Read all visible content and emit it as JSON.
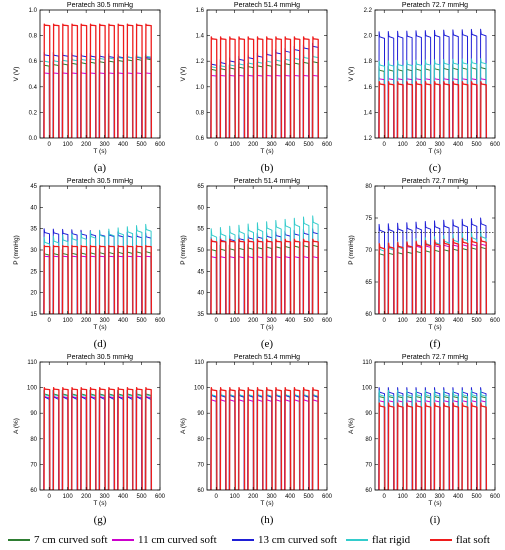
{
  "chart_data": [
    {
      "id": "a",
      "type": "line",
      "title": "Peratech 30.5 mmHg",
      "panel_label": "(a)",
      "xlabel": "T (s)",
      "ylabel": "V (V)",
      "xlim": [
        -50,
        600
      ],
      "xticks": [
        "0",
        "100",
        "200",
        "300",
        "400",
        "500",
        "600"
      ],
      "ylim": [
        0.0,
        1.0
      ],
      "yticks": [
        "0.0",
        "0.2",
        "0.4",
        "0.6",
        "0.8",
        "1.0"
      ],
      "series": [
        {
          "name": "7 cm curved soft",
          "color": "#2e7d32",
          "base": 0.0,
          "start": 0.52,
          "peak": 0.59,
          "trend": 0.05
        },
        {
          "name": "11 cm curved soft",
          "color": "#cc00cc",
          "base": 0.0,
          "start": 0.48,
          "peak": 0.52,
          "trend": 0.0
        },
        {
          "name": "13 cm curved soft",
          "color": "#1f1fd6",
          "base": 0.0,
          "start": 0.6,
          "peak": 0.67,
          "trend": -0.02
        },
        {
          "name": "flat rigid",
          "color": "#33cccc",
          "base": 0.0,
          "start": 0.55,
          "peak": 0.62,
          "trend": 0.04
        },
        {
          "name": "flat soft",
          "color": "#ee1c1c",
          "base": 0.0,
          "start": 0.86,
          "peak": 0.89,
          "trend": 0.0
        }
      ]
    },
    {
      "id": "b",
      "type": "line",
      "title": "Peratech 51.4 mmHg",
      "panel_label": "(b)",
      "xlabel": "T (s)",
      "ylabel": "V (V)",
      "xlim": [
        -50,
        600
      ],
      "xticks": [
        "0",
        "100",
        "200",
        "300",
        "400",
        "500",
        "600"
      ],
      "ylim": [
        0.6,
        1.6
      ],
      "yticks": [
        "0.6",
        "0.8",
        "1.0",
        "1.2",
        "1.4",
        "1.6"
      ],
      "series": [
        {
          "name": "7 cm curved soft",
          "color": "#2e7d32",
          "base": 0.6,
          "start": 1.08,
          "peak": 1.16,
          "trend": 0.06
        },
        {
          "name": "11 cm curved soft",
          "color": "#cc00cc",
          "base": 0.6,
          "start": 1.06,
          "peak": 1.1,
          "trend": 0.0
        },
        {
          "name": "13 cm curved soft",
          "color": "#1f1fd6",
          "base": 0.6,
          "start": 1.12,
          "peak": 1.2,
          "trend": 0.14
        },
        {
          "name": "flat rigid",
          "color": "#33cccc",
          "base": 0.6,
          "start": 1.1,
          "peak": 1.18,
          "trend": 0.08
        },
        {
          "name": "flat soft",
          "color": "#ee1c1c",
          "base": 0.6,
          "start": 1.34,
          "peak": 1.39,
          "trend": 0.0
        }
      ]
    },
    {
      "id": "c",
      "type": "line",
      "title": "Peratech 72.7 mmHg",
      "panel_label": "(c)",
      "xlabel": "T (s)",
      "ylabel": "V (V)",
      "xlim": [
        -50,
        600
      ],
      "xticks": [
        "0",
        "100",
        "200",
        "300",
        "400",
        "500",
        "600"
      ],
      "ylim": [
        1.2,
        2.2
      ],
      "yticks": [
        "1.2",
        "1.4",
        "1.6",
        "1.8",
        "2.0",
        "2.2"
      ],
      "series": [
        {
          "name": "7 cm curved soft",
          "color": "#2e7d32",
          "base": 1.2,
          "start": 1.66,
          "peak": 1.76,
          "trend": 0.02
        },
        {
          "name": "11 cm curved soft",
          "color": "#cc00cc",
          "base": 1.2,
          "start": 1.62,
          "peak": 1.68,
          "trend": 0.0
        },
        {
          "name": "13 cm curved soft",
          "color": "#1f1fd6",
          "base": 1.2,
          "start": 1.9,
          "peak": 2.03,
          "trend": 0.02
        },
        {
          "name": "flat rigid",
          "color": "#33cccc",
          "base": 1.2,
          "start": 1.7,
          "peak": 1.8,
          "trend": 0.02
        },
        {
          "name": "flat soft",
          "color": "#ee1c1c",
          "base": 1.2,
          "start": 1.58,
          "peak": 1.64,
          "trend": 0.0
        }
      ]
    },
    {
      "id": "d",
      "type": "line",
      "title": "Peratech 30.5 mmHg",
      "panel_label": "(d)",
      "xlabel": "T (s)",
      "ylabel": "P (mmHg)",
      "xlim": [
        -50,
        600
      ],
      "xticks": [
        "0",
        "100",
        "200",
        "300",
        "400",
        "500",
        "600"
      ],
      "ylim": [
        15,
        45
      ],
      "yticks": [
        "15",
        "20",
        "25",
        "30",
        "35",
        "40",
        "45"
      ],
      "series": [
        {
          "name": "7 cm curved soft",
          "color": "#2e7d32",
          "base": 15,
          "start": 27,
          "peak": 30,
          "trend": 0.5
        },
        {
          "name": "11 cm curved soft",
          "color": "#cc00cc",
          "base": 15,
          "start": 27.5,
          "peak": 29,
          "trend": 0.0
        },
        {
          "name": "13 cm curved soft",
          "color": "#1f1fd6",
          "base": 15,
          "start": 32,
          "peak": 35,
          "trend": -1.0
        },
        {
          "name": "flat rigid",
          "color": "#33cccc",
          "base": 15,
          "start": 29,
          "peak": 33,
          "trend": 3.0
        },
        {
          "name": "flat soft",
          "color": "#ee1c1c",
          "base": 15,
          "start": 30.5,
          "peak": 31,
          "trend": 0.0
        }
      ]
    },
    {
      "id": "e",
      "type": "line",
      "title": "Peratech 51.4 mmHg",
      "panel_label": "(e)",
      "xlabel": "T (s)",
      "ylabel": "P (mmHg)",
      "xlim": [
        -50,
        600
      ],
      "xticks": [
        "0",
        "100",
        "200",
        "300",
        "400",
        "500",
        "600"
      ],
      "ylim": [
        35,
        65
      ],
      "yticks": [
        "35",
        "40",
        "45",
        "50",
        "55",
        "60",
        "65"
      ],
      "series": [
        {
          "name": "7 cm curved soft",
          "color": "#2e7d32",
          "base": 35,
          "start": 48,
          "peak": 51,
          "trend": 1.0
        },
        {
          "name": "11 cm curved soft",
          "color": "#cc00cc",
          "base": 35,
          "start": 47,
          "peak": 49,
          "trend": 0.0
        },
        {
          "name": "13 cm curved soft",
          "color": "#1f1fd6",
          "base": 35,
          "start": 50,
          "peak": 53,
          "trend": 2.0
        },
        {
          "name": "flat rigid",
          "color": "#33cccc",
          "base": 35,
          "start": 50,
          "peak": 55,
          "trend": 3.0
        },
        {
          "name": "flat soft",
          "color": "#ee1c1c",
          "base": 35,
          "start": 51,
          "peak": 52.5,
          "trend": 0.0
        }
      ]
    },
    {
      "id": "f",
      "type": "line",
      "title": "Peratech 72.7 mmHg",
      "panel_label": "(f)",
      "xlabel": "T (s)",
      "ylabel": "P (mmHg)",
      "xlim": [
        -50,
        600
      ],
      "xticks": [
        "0",
        "100",
        "200",
        "300",
        "400",
        "500",
        "600"
      ],
      "ylim": [
        60,
        80
      ],
      "yticks": [
        "60",
        "65",
        "70",
        "75",
        "80"
      ],
      "reference_line": 72.7,
      "series": [
        {
          "name": "7 cm curved soft",
          "color": "#2e7d32",
          "base": 60,
          "start": 68,
          "peak": 70,
          "trend": 1.0
        },
        {
          "name": "11 cm curved soft",
          "color": "#cc00cc",
          "base": 60,
          "start": 69,
          "peak": 71,
          "trend": 0.5
        },
        {
          "name": "13 cm curved soft",
          "color": "#1f1fd6",
          "base": 60,
          "start": 71,
          "peak": 74,
          "trend": 1.0
        },
        {
          "name": "flat rigid",
          "color": "#33cccc",
          "base": 60,
          "start": 68,
          "peak": 71,
          "trend": 2.0
        },
        {
          "name": "flat soft",
          "color": "#ee1c1c",
          "base": 60,
          "start": 69,
          "peak": 71,
          "trend": 1.0
        }
      ]
    },
    {
      "id": "g",
      "type": "line",
      "title": "Peratech 30.5 mmHg",
      "panel_label": "(g)",
      "xlabel": "T (s)",
      "ylabel": "A (%)",
      "xlim": [
        -50,
        600
      ],
      "xticks": [
        "0",
        "100",
        "200",
        "300",
        "400",
        "500",
        "600"
      ],
      "ylim": [
        60,
        110
      ],
      "yticks": [
        "60",
        "70",
        "80",
        "90",
        "100",
        "110"
      ],
      "series": [
        {
          "name": "7 cm curved soft",
          "color": "#2e7d32",
          "base": 60,
          "start": 94,
          "peak": 99,
          "trend": 0.0
        },
        {
          "name": "11 cm curved soft",
          "color": "#cc00cc",
          "base": 60,
          "start": 93,
          "peak": 98,
          "trend": 0.0
        },
        {
          "name": "13 cm curved soft",
          "color": "#1f1fd6",
          "base": 60,
          "start": 90,
          "peak": 99,
          "trend": 0.0
        },
        {
          "name": "flat rigid",
          "color": "#33cccc",
          "base": 60,
          "start": 93,
          "peak": 99,
          "trend": 0.0
        },
        {
          "name": "flat soft",
          "color": "#ee1c1c",
          "base": 60,
          "start": 98,
          "peak": 100,
          "trend": 0.0
        }
      ]
    },
    {
      "id": "h",
      "type": "line",
      "title": "Peratech 51.4 mmHg",
      "panel_label": "(h)",
      "xlabel": "T (s)",
      "ylabel": "A (%)",
      "xlim": [
        -50,
        600
      ],
      "xticks": [
        "0",
        "100",
        "200",
        "300",
        "400",
        "500",
        "600"
      ],
      "ylim": [
        60,
        110
      ],
      "yticks": [
        "60",
        "70",
        "80",
        "90",
        "100",
        "110"
      ],
      "series": [
        {
          "name": "7 cm curved soft",
          "color": "#2e7d32",
          "base": 60,
          "start": 93,
          "peak": 99,
          "trend": 0.0
        },
        {
          "name": "11 cm curved soft",
          "color": "#cc00cc",
          "base": 60,
          "start": 91,
          "peak": 97,
          "trend": 0.0
        },
        {
          "name": "13 cm curved soft",
          "color": "#1f1fd6",
          "base": 60,
          "start": 92,
          "peak": 99,
          "trend": 0.0
        },
        {
          "name": "flat rigid",
          "color": "#33cccc",
          "base": 60,
          "start": 93,
          "peak": 99,
          "trend": 0.0
        },
        {
          "name": "flat soft",
          "color": "#ee1c1c",
          "base": 60,
          "start": 97,
          "peak": 100,
          "trend": 0.0
        }
      ]
    },
    {
      "id": "i",
      "type": "line",
      "title": "Peratech 72.7 mmHg",
      "panel_label": "(i)",
      "xlabel": "T (s)",
      "ylabel": "A (%)",
      "xlim": [
        -50,
        600
      ],
      "xticks": [
        "0",
        "100",
        "200",
        "300",
        "400",
        "500",
        "600"
      ],
      "ylim": [
        60,
        110
      ],
      "yticks": [
        "60",
        "70",
        "80",
        "90",
        "100",
        "110"
      ],
      "series": [
        {
          "name": "7 cm curved soft",
          "color": "#2e7d32",
          "base": 60,
          "start": 93,
          "peak": 98,
          "trend": 0.0
        },
        {
          "name": "11 cm curved soft",
          "color": "#cc00cc",
          "base": 60,
          "start": 92,
          "peak": 96,
          "trend": 0.0
        },
        {
          "name": "13 cm curved soft",
          "color": "#1f1fd6",
          "base": 60,
          "start": 94,
          "peak": 100,
          "trend": 0.0
        },
        {
          "name": "flat rigid",
          "color": "#33cccc",
          "base": 60,
          "start": 93,
          "peak": 99,
          "trend": 0.0
        },
        {
          "name": "flat soft",
          "color": "#ee1c1c",
          "base": 60,
          "start": 90,
          "peak": 94,
          "trend": 0.0
        }
      ]
    }
  ],
  "cycle_starts_s": [
    -30,
    20,
    70,
    120,
    170,
    220,
    270,
    320,
    370,
    420,
    470,
    520
  ],
  "legend": [
    {
      "label": "7 cm curved soft",
      "color": "#2e7d32"
    },
    {
      "label": "11  cm curved soft",
      "color": "#cc00cc"
    },
    {
      "label": "13 cm curved soft",
      "color": "#1f1fd6"
    },
    {
      "label": "flat rigid",
      "color": "#33cccc"
    },
    {
      "label": "flat soft",
      "color": "#ee1c1c"
    }
  ]
}
